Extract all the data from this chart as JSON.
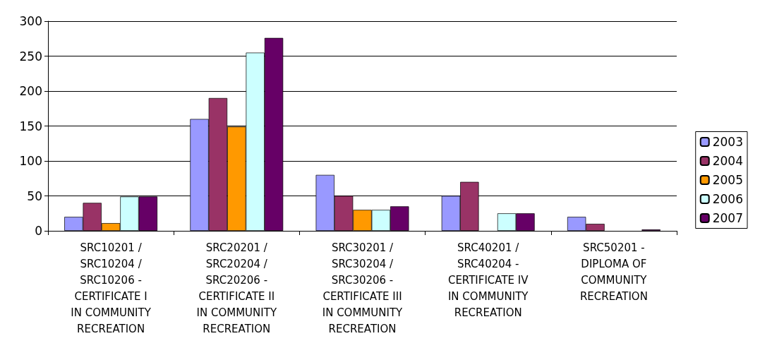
{
  "chart_data": {
    "type": "bar",
    "categories": [
      "SRC10201 /\nSRC10204 /\nSRC10206 -\nCERTIFICATE I\nIN COMMUNITY\nRECREATION",
      "SRC20201 /\nSRC20204 /\nSRC20206 -\nCERTIFICATE II\nIN COMMUNITY\nRECREATION",
      "SRC30201 /\nSRC30204 /\nSRC30206 -\nCERTIFICATE III\nIN COMMUNITY\nRECREATION",
      "SRC40201 /\nSRC40204 -\nCERTIFICATE IV\nIN COMMUNITY\nRECREATION",
      "SRC50201 -\nDIPLOMA OF\nCOMMUNITY\nRECREATION"
    ],
    "series": [
      {
        "name": "2003",
        "color": "#9999ff",
        "values": [
          20,
          160,
          80,
          50,
          20
        ]
      },
      {
        "name": "2004",
        "color": "#993366",
        "values": [
          40,
          190,
          50,
          70,
          10
        ]
      },
      {
        "name": "2005",
        "color": "#ff9900",
        "values": [
          11,
          149,
          30,
          null,
          null
        ]
      },
      {
        "name": "2006",
        "color": "#ccffff",
        "values": [
          49,
          255,
          30,
          25,
          null
        ]
      },
      {
        "name": "2007",
        "color": "#660066",
        "values": [
          49,
          276,
          35,
          25,
          2
        ]
      }
    ],
    "ylim": [
      0,
      300
    ],
    "yticks": [
      0,
      50,
      100,
      150,
      200,
      250,
      300
    ],
    "grid": "y",
    "legend": "right"
  }
}
